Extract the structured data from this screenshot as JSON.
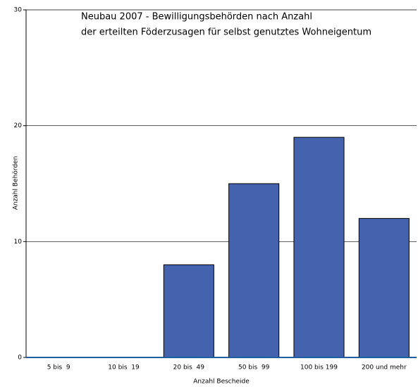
{
  "chart_data": {
    "type": "bar",
    "title": [
      "Neubau 2007 - Bewilligungsbehörden nach Anzahl",
      "der erteilten Föderzusagen für selbst genutztes Wohneigentum"
    ],
    "x_label": "Anzahl Bescheide",
    "y_label": "Anzahl Behörden",
    "categories": [
      "5 bis  9",
      "10 bis  19",
      "20 bis  49",
      "50 bis  99",
      "100 bis 199",
      "200 und mehr"
    ],
    "values": [
      0,
      0,
      8,
      15,
      19,
      12
    ],
    "color": "#4462ae",
    "ylim": [
      0,
      30
    ],
    "yticks": [
      0,
      10,
      20,
      30
    ],
    "grid": true
  }
}
